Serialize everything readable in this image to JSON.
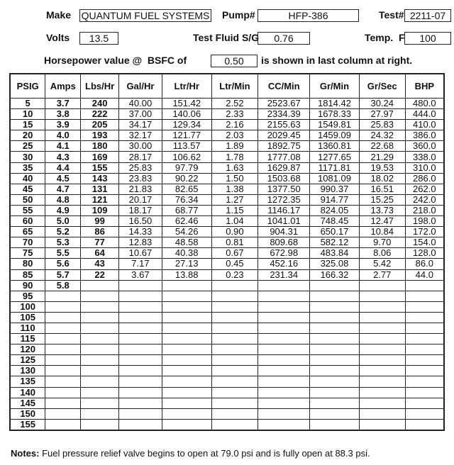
{
  "header": {
    "make_label": "Make",
    "make": "QUANTUM FUEL SYSTEMS",
    "pump_label": "Pump#",
    "pump": "HFP-386",
    "test_label": "Test#",
    "test": "2211-07",
    "volts_label": "Volts",
    "volts": "13.5",
    "sg_label": "Test Fluid S/G",
    "sg": "0.76",
    "temp_label": "Temp.  F",
    "temp": "100",
    "hp_prefix": "Horsepower value @  BSFC of",
    "bsfc": "0.50",
    "hp_suffix": "is shown in last column at right."
  },
  "table": {
    "columns": [
      "PSIG",
      "Amps",
      "Lbs/Hr",
      "Gal/Hr",
      "Ltr/Hr",
      "Ltr/Min",
      "CC/Min",
      "Gr/Min",
      "Gr/Sec",
      "BHP"
    ],
    "rows": [
      [
        "5",
        "3.7",
        "240",
        "40.00",
        "151.42",
        "2.52",
        "2523.67",
        "1814.42",
        "30.24",
        "480.0"
      ],
      [
        "10",
        "3.8",
        "222",
        "37.00",
        "140.06",
        "2.33",
        "2334.39",
        "1678.33",
        "27.97",
        "444.0"
      ],
      [
        "15",
        "3.9",
        "205",
        "34.17",
        "129.34",
        "2.16",
        "2155.63",
        "1549.81",
        "25.83",
        "410.0"
      ],
      [
        "20",
        "4.0",
        "193",
        "32.17",
        "121.77",
        "2.03",
        "2029.45",
        "1459.09",
        "24.32",
        "386.0"
      ],
      [
        "25",
        "4.1",
        "180",
        "30.00",
        "113.57",
        "1.89",
        "1892.75",
        "1360.81",
        "22.68",
        "360.0"
      ],
      [
        "30",
        "4.3",
        "169",
        "28.17",
        "106.62",
        "1.78",
        "1777.08",
        "1277.65",
        "21.29",
        "338.0"
      ],
      [
        "35",
        "4.4",
        "155",
        "25.83",
        "97.79",
        "1.63",
        "1629.87",
        "1171.81",
        "19.53",
        "310.0"
      ],
      [
        "40",
        "4.5",
        "143",
        "23.83",
        "90.22",
        "1.50",
        "1503.68",
        "1081.09",
        "18.02",
        "286.0"
      ],
      [
        "45",
        "4.7",
        "131",
        "21.83",
        "82.65",
        "1.38",
        "1377.50",
        "990.37",
        "16.51",
        "262.0"
      ],
      [
        "50",
        "4.8",
        "121",
        "20.17",
        "76.34",
        "1.27",
        "1272.35",
        "914.77",
        "15.25",
        "242.0"
      ],
      [
        "55",
        "4.9",
        "109",
        "18.17",
        "68.77",
        "1.15",
        "1146.17",
        "824.05",
        "13.73",
        "218.0"
      ],
      [
        "60",
        "5.0",
        "99",
        "16.50",
        "62.46",
        "1.04",
        "1041.01",
        "748.45",
        "12.47",
        "198.0"
      ],
      [
        "65",
        "5.2",
        "86",
        "14.33",
        "54.26",
        "0.90",
        "904.31",
        "650.17",
        "10.84",
        "172.0"
      ],
      [
        "70",
        "5.3",
        "77",
        "12.83",
        "48.58",
        "0.81",
        "809.68",
        "582.12",
        "9.70",
        "154.0"
      ],
      [
        "75",
        "5.5",
        "64",
        "10.67",
        "40.38",
        "0.67",
        "672.98",
        "483.84",
        "8.06",
        "128.0"
      ],
      [
        "80",
        "5.6",
        "43",
        "7.17",
        "27.13",
        "0.45",
        "452.16",
        "325.08",
        "5.42",
        "86.0"
      ],
      [
        "85",
        "5.7",
        "22",
        "3.67",
        "13.88",
        "0.23",
        "231.34",
        "166.32",
        "2.77",
        "44.0"
      ],
      [
        "90",
        "5.8",
        "",
        "",
        "",
        "",
        "",
        "",
        "",
        ""
      ],
      [
        "95",
        "",
        "",
        "",
        "",
        "",
        "",
        "",
        "",
        ""
      ],
      [
        "100",
        "",
        "",
        "",
        "",
        "",
        "",
        "",
        "",
        ""
      ],
      [
        "105",
        "",
        "",
        "",
        "",
        "",
        "",
        "",
        "",
        ""
      ],
      [
        "110",
        "",
        "",
        "",
        "",
        "",
        "",
        "",
        "",
        ""
      ],
      [
        "115",
        "",
        "",
        "",
        "",
        "",
        "",
        "",
        "",
        ""
      ],
      [
        "120",
        "",
        "",
        "",
        "",
        "",
        "",
        "",
        "",
        ""
      ],
      [
        "125",
        "",
        "",
        "",
        "",
        "",
        "",
        "",
        "",
        ""
      ],
      [
        "130",
        "",
        "",
        "",
        "",
        "",
        "",
        "",
        "",
        ""
      ],
      [
        "135",
        "",
        "",
        "",
        "",
        "",
        "",
        "",
        "",
        ""
      ],
      [
        "140",
        "",
        "",
        "",
        "",
        "",
        "",
        "",
        "",
        ""
      ],
      [
        "145",
        "",
        "",
        "",
        "",
        "",
        "",
        "",
        "",
        ""
      ],
      [
        "150",
        "",
        "",
        "",
        "",
        "",
        "",
        "",
        "",
        ""
      ],
      [
        "155",
        "",
        "",
        "",
        "",
        "",
        "",
        "",
        "",
        ""
      ]
    ]
  },
  "notes": {
    "label": "Notes:",
    "text": "Fuel pressure relief valve begins to open at 79.0 psi and is fully open at 88.3 psi."
  }
}
